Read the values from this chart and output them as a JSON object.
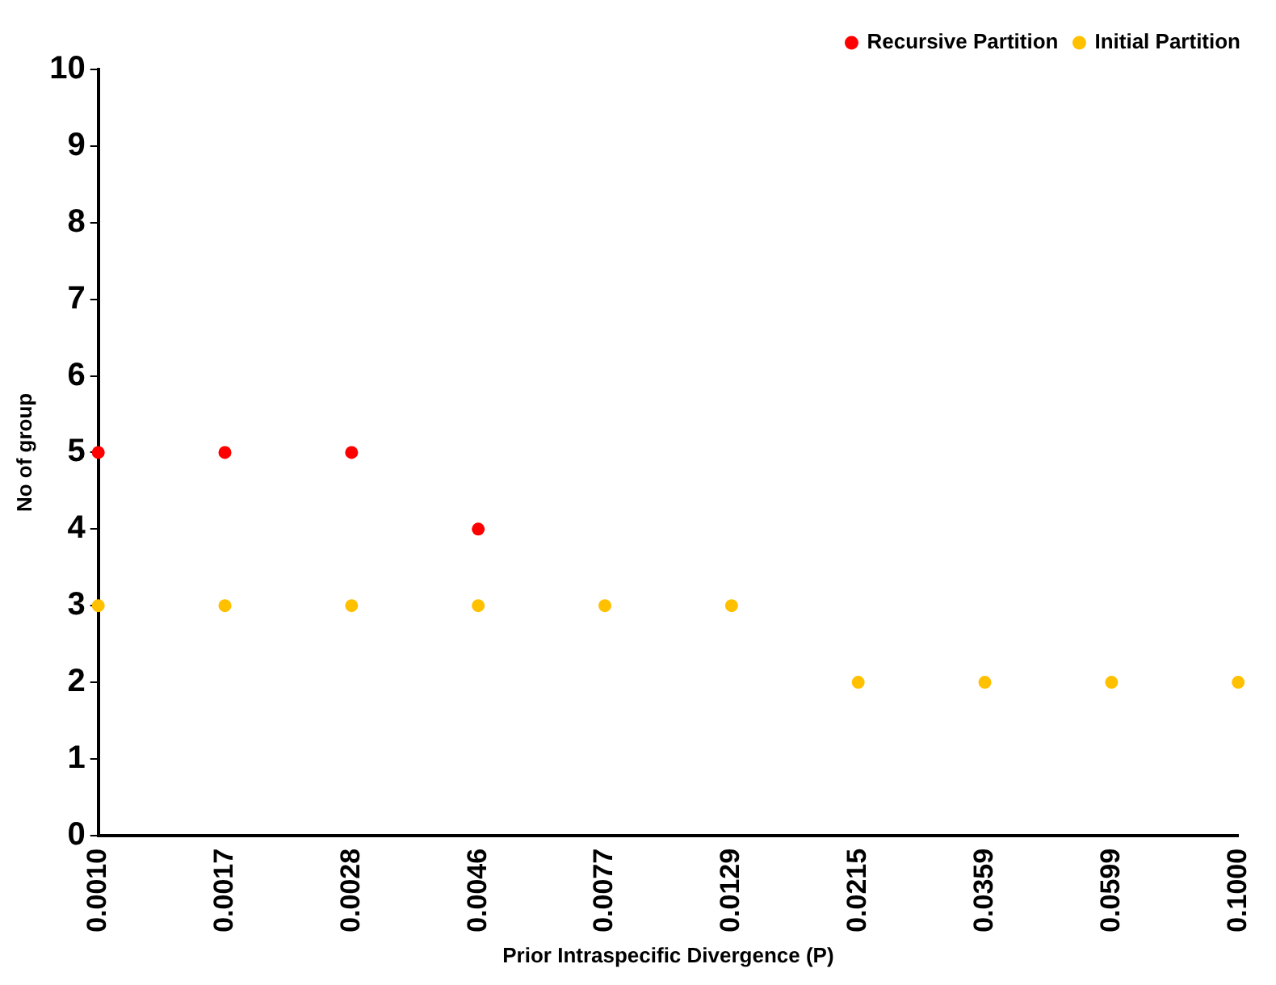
{
  "chart_data": {
    "type": "scatter",
    "xlabel": "Prior Intraspecific Divergence (P)",
    "ylabel": "No of group",
    "categories": [
      "0.0010",
      "0.0017",
      "0.0028",
      "0.0046",
      "0.0077",
      "0.0129",
      "0.0215",
      "0.0359",
      "0.0599",
      "0.1000"
    ],
    "series": [
      {
        "name": "Recursive Partition",
        "color": "#ff0000",
        "values": [
          5,
          5,
          5,
          4,
          null,
          null,
          null,
          null,
          null,
          null
        ]
      },
      {
        "name": "Initial Partition",
        "color": "#ffc000",
        "values": [
          3,
          3,
          3,
          3,
          3,
          3,
          2,
          2,
          2,
          2
        ]
      }
    ],
    "ylim": [
      0,
      10
    ],
    "yticks": [
      0,
      1,
      2,
      3,
      4,
      5,
      6,
      7,
      8,
      9,
      10
    ],
    "grid": false,
    "legend": "top right",
    "marker": "circle"
  }
}
